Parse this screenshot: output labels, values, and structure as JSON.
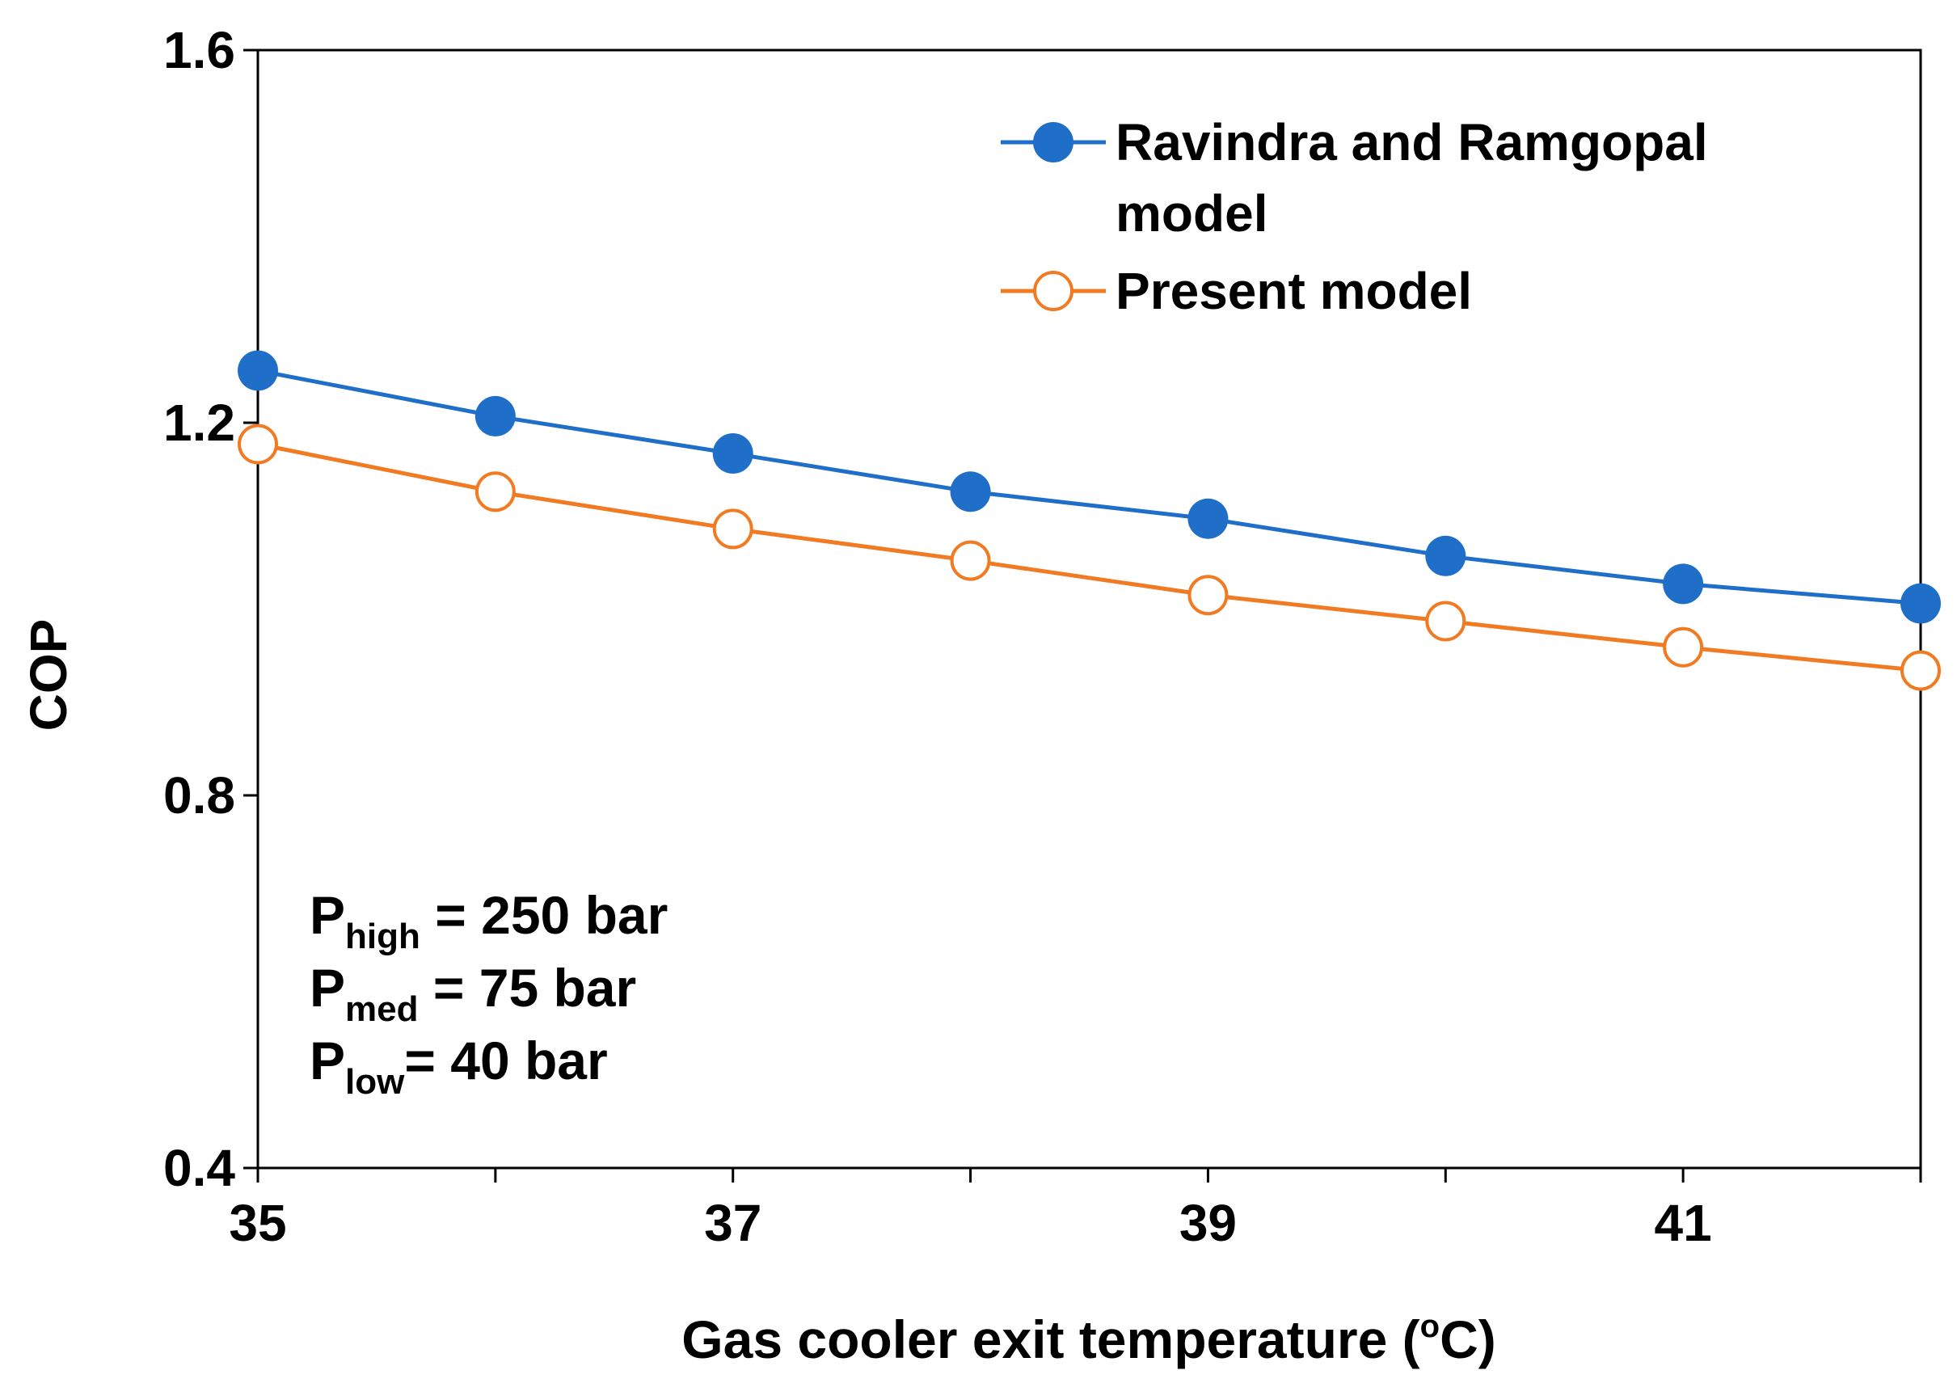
{
  "chart_data": {
    "type": "line",
    "title": "",
    "xlabel": "Gas cooler exit temperature (",
    "xlabel_degree": "o",
    "xlabel_unit": "C)",
    "ylabel": "COP",
    "xlim": [
      35,
      42
    ],
    "ylim": [
      0.4,
      1.6
    ],
    "xticks": [
      "35",
      "37",
      "39",
      "41"
    ],
    "yticks": [
      "0.4",
      "0.8",
      "1.2",
      "1.6"
    ],
    "grid": false,
    "legend_position": "top-right",
    "x": [
      35,
      36,
      37,
      38,
      39,
      40,
      41,
      42
    ],
    "series": [
      {
        "name_line1": "Ravindra and Ramgopal",
        "name_line2": "model",
        "marker": "filled-circle",
        "color": "#1f6fc9",
        "values": [
          1.256,
          1.207,
          1.167,
          1.126,
          1.097,
          1.057,
          1.027,
          1.006
        ]
      },
      {
        "name_line1": "Present model",
        "marker": "open-circle",
        "color": "#f07b22",
        "values": [
          1.177,
          1.126,
          1.086,
          1.052,
          1.015,
          0.987,
          0.959,
          0.934
        ]
      }
    ],
    "annotations": [
      {
        "main": "P",
        "sub": "high",
        "rest": " = 250 bar"
      },
      {
        "main": "P",
        "sub": "med",
        "rest": " = 75 bar"
      },
      {
        "main": "P",
        "sub": "low",
        "rest": "= 40 bar"
      }
    ]
  }
}
